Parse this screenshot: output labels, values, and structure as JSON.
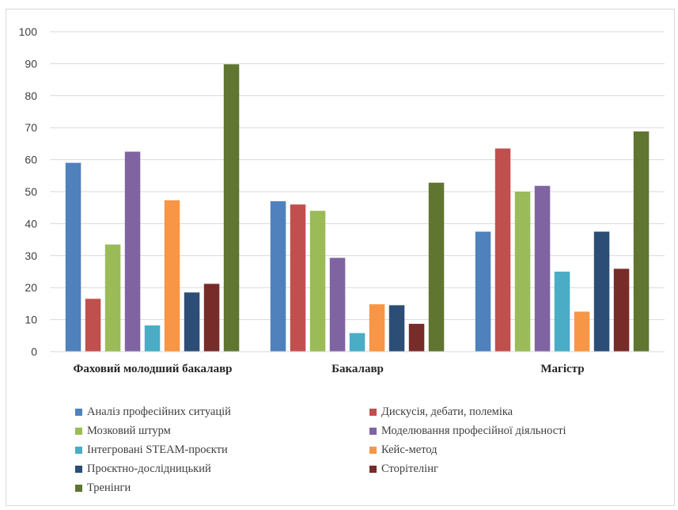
{
  "chart_data": {
    "type": "bar",
    "title": "",
    "xlabel": "",
    "ylabel": "",
    "ylim": [
      0,
      100
    ],
    "yticks": [
      0,
      10,
      20,
      30,
      40,
      50,
      60,
      70,
      80,
      90,
      100
    ],
    "grid": true,
    "legend_position": "bottom",
    "categories": [
      "Фаховий молодший бакалавр",
      "Бакалавр",
      "Магістр"
    ],
    "series": [
      {
        "name": "Аналіз професійних ситуацій",
        "color": "#4f81bd",
        "values": [
          59,
          47,
          37.5
        ]
      },
      {
        "name": "Дискусія, дебати, полеміка",
        "color": "#c0504d",
        "values": [
          16.5,
          46,
          63.5
        ]
      },
      {
        "name": "Мозковий штурм",
        "color": "#9bbb59",
        "values": [
          33.5,
          44,
          50
        ]
      },
      {
        "name": "Моделювання професійної діяльності",
        "color": "#8064a2",
        "values": [
          62.5,
          29.3,
          51.8
        ]
      },
      {
        "name": "Інтегровані STEAM-проєкти",
        "color": "#4bacc6",
        "values": [
          8.2,
          5.8,
          25
        ]
      },
      {
        "name": "Кейс-метод",
        "color": "#f79646",
        "values": [
          47.3,
          14.8,
          12.5
        ]
      },
      {
        "name": "Проєктно-дослідницький",
        "color": "#2c4d75",
        "values": [
          18.5,
          14.5,
          37.5
        ]
      },
      {
        "name": "Сторітелінг",
        "color": "#772c2a",
        "values": [
          21.2,
          8.7,
          25.9
        ]
      },
      {
        "name": "Тренінги",
        "color": "#5f7530",
        "values": [
          89.8,
          52.8,
          68.8
        ]
      }
    ]
  }
}
